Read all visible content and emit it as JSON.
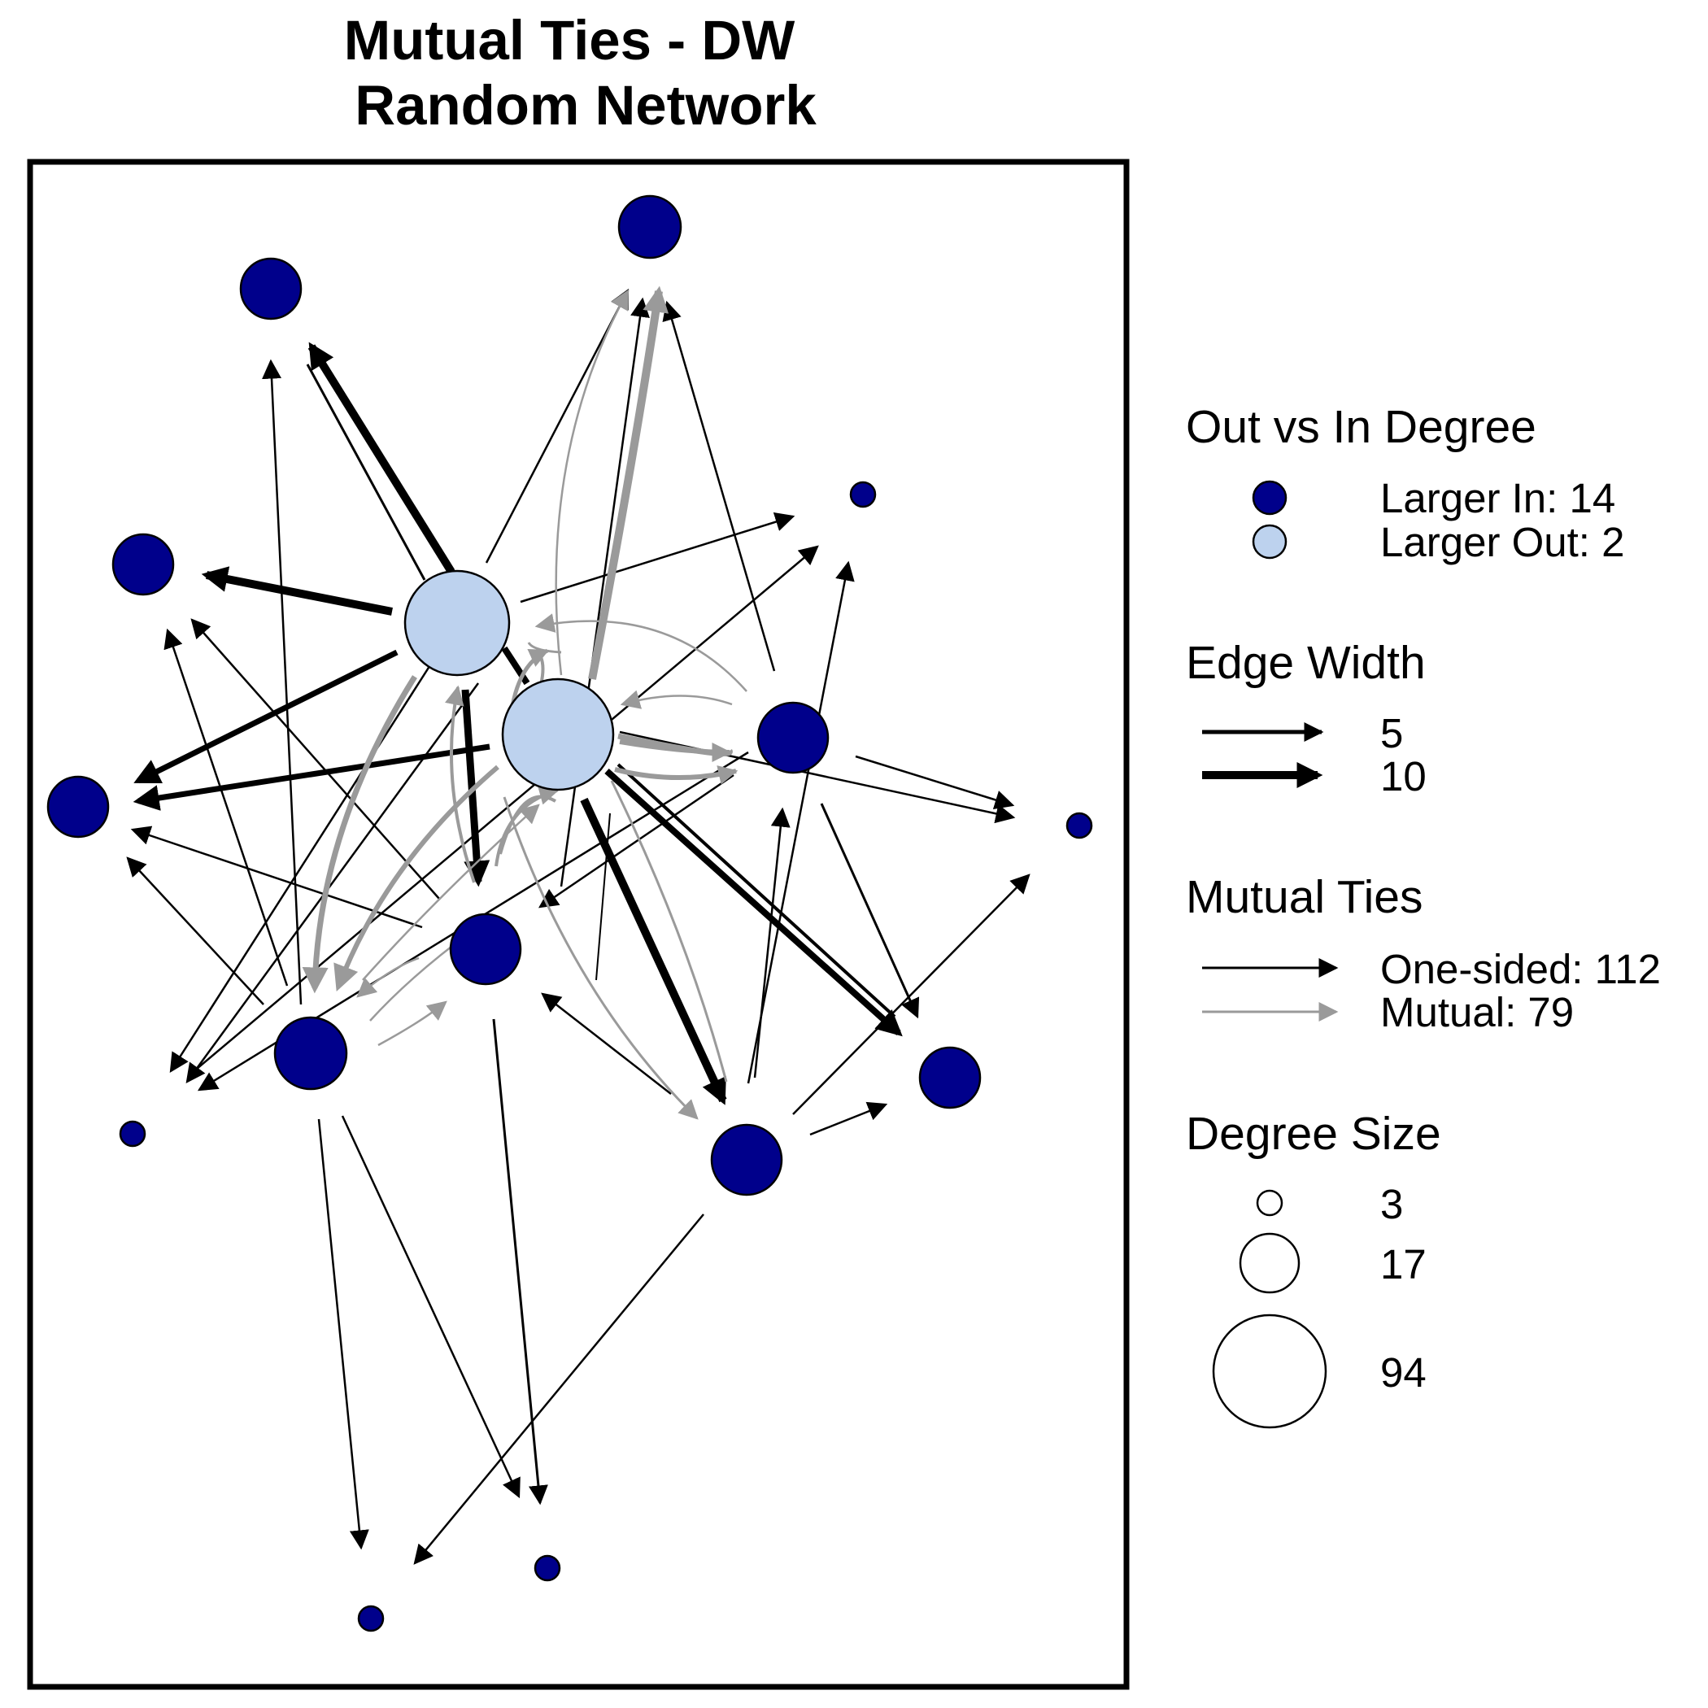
{
  "title": {
    "line1": "Mutual Ties - DW",
    "line2": "Random Network"
  },
  "colors": {
    "larger_in": "#00008B",
    "larger_out": "#BDD2EE",
    "one_sided_edge": "#000000",
    "mutual_edge": "#9A9A9A",
    "node_stroke": "#000000"
  },
  "legend": {
    "out_vs_in": {
      "heading": "Out vs In Degree",
      "larger_in_label": "Larger In:  14",
      "larger_out_label": "Larger Out: 2"
    },
    "edge_width": {
      "heading": "Edge Width",
      "items": [
        {
          "label": "5",
          "width": 5
        },
        {
          "label": "10",
          "width": 10
        }
      ]
    },
    "mutual_ties": {
      "heading": "Mutual Ties",
      "one_sided_label": "One-sided: 112",
      "mutual_label": "Mutual: 79"
    },
    "degree_size": {
      "heading": "Degree Size",
      "items": [
        {
          "label": "3",
          "degree": 3
        },
        {
          "label": "17",
          "degree": 17
        },
        {
          "label": "94",
          "degree": 94
        }
      ]
    }
  },
  "network": {
    "node_count": 16,
    "larger_in_count": 14,
    "larger_out_count": 2,
    "one_sided_ties": 112,
    "mutual_ties": 79
  }
}
